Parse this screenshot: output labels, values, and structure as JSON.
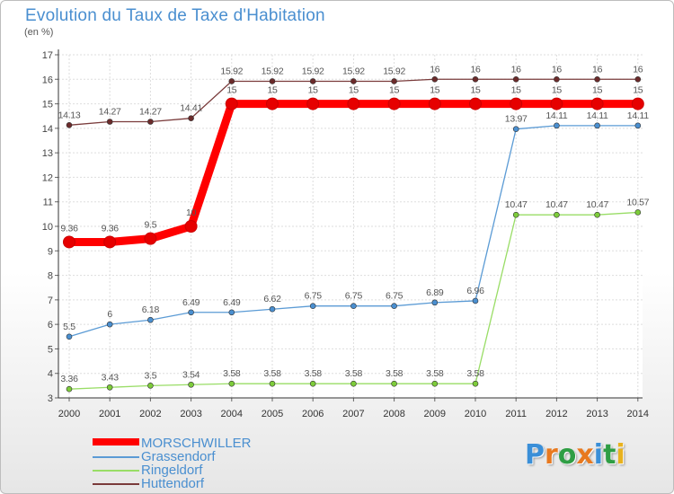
{
  "title": "Evolution du Taux de Taxe d'Habitation",
  "subtitle": "(en %)",
  "logo": {
    "letters": [
      "P",
      "r",
      "o",
      "x",
      "i",
      "t",
      "i"
    ],
    "colors": [
      "#3a8fd8",
      "#e8791f",
      "#2f9e44",
      "#e8791f",
      "#3a8fd8",
      "#2f9e44",
      "#e8b21f"
    ]
  },
  "chart_data": {
    "type": "line",
    "x": [
      "2000",
      "2001",
      "2002",
      "2003",
      "2004",
      "2005",
      "2006",
      "2007",
      "2008",
      "2009",
      "2010",
      "2011",
      "2012",
      "2013",
      "2014"
    ],
    "ylim": [
      3,
      17
    ],
    "yticks": [
      "3",
      "4",
      "5",
      "6",
      "7",
      "8",
      "9",
      "10",
      "11",
      "12",
      "13",
      "14",
      "15",
      "16",
      "17"
    ],
    "grid": true,
    "legend_position": "bottom-left",
    "series": [
      {
        "name": "MORSCHWILLER",
        "color": "#ff0000",
        "marker_color": "#e60000",
        "thick": true,
        "values": [
          9.36,
          9.36,
          9.5,
          10,
          15,
          15,
          15,
          15,
          15,
          15,
          15,
          15,
          15,
          15,
          15
        ],
        "labels": [
          "9.36",
          "9.36",
          "9.5",
          "10",
          "15",
          "15",
          "15",
          "15",
          "15",
          "15",
          "15",
          "15",
          "15",
          "15",
          "15"
        ]
      },
      {
        "name": "Grassendorf",
        "color": "#5b9bd5",
        "marker_color": "#4a8fd0",
        "thick": false,
        "values": [
          5.5,
          6,
          6.18,
          6.49,
          6.49,
          6.62,
          6.75,
          6.75,
          6.75,
          6.89,
          6.96,
          13.97,
          14.11,
          14.11,
          14.11
        ],
        "labels": [
          "5.5",
          "6",
          "6.18",
          "6.49",
          "6.49",
          "6.62",
          "6.75",
          "6.75",
          "6.75",
          "6.89",
          "6.96",
          "13.97",
          "14.11",
          "14.11",
          "14.11"
        ]
      },
      {
        "name": "Ringeldorf",
        "color": "#99dd66",
        "marker_color": "#7dcc3a",
        "thick": false,
        "values": [
          3.36,
          3.43,
          3.5,
          3.54,
          3.58,
          3.58,
          3.58,
          3.58,
          3.58,
          3.58,
          3.58,
          10.47,
          10.47,
          10.47,
          10.57
        ],
        "labels": [
          "3.36",
          "3.43",
          "3.5",
          "3.54",
          "3.58",
          "3.58",
          "3.58",
          "3.58",
          "3.58",
          "3.58",
          "3.58",
          "10.47",
          "10.47",
          "10.47",
          "10.57"
        ]
      },
      {
        "name": "Huttendorf",
        "color": "#7a3b3b",
        "marker_color": "#6b2b2b",
        "thick": false,
        "values": [
          14.13,
          14.27,
          14.27,
          14.41,
          15.92,
          15.92,
          15.92,
          15.92,
          15.92,
          16,
          16,
          16,
          16,
          16,
          16
        ],
        "labels": [
          "14.13",
          "14.27",
          "14.27",
          "14.41",
          "15.92",
          "15.92",
          "15.92",
          "15.92",
          "15.92",
          "16",
          "16",
          "16",
          "16",
          "16",
          "16"
        ]
      }
    ]
  }
}
